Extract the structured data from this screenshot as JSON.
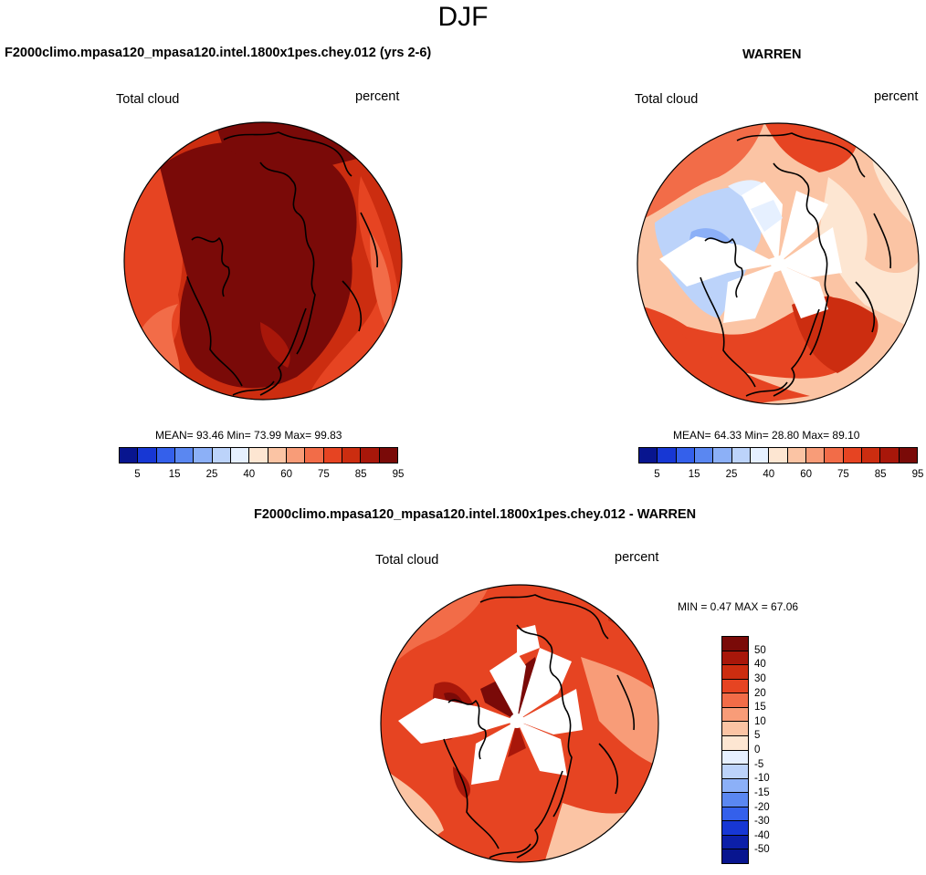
{
  "figure": {
    "season": "DJF",
    "diff_title": "F2000climo.mpasa120_mpasa120.intel.1800x1pes.chey.012 - WARREN"
  },
  "chart_data": [
    {
      "type": "heatmap",
      "projection": "north polar stereographic",
      "title": "F2000climo.mpasa120_mpasa120.intel.1800x1pes.chey.012 (yrs 2-6)",
      "left_label": "Total cloud",
      "right_label": "percent",
      "stats": {
        "mean": "93.46",
        "min": "73.99",
        "max": "99.83"
      },
      "stats_text": "MEAN=  93.46  Min=  73.99  Max=  99.83",
      "colorbar": {
        "orientation": "horizontal",
        "tick_labels": [
          "5",
          "15",
          "25",
          "40",
          "60",
          "75",
          "85",
          "95"
        ],
        "colors": [
          "#08158f",
          "#1737d4",
          "#3460eb",
          "#5a87f1",
          "#8cb0f7",
          "#bcd3fa",
          "#e6f0ff",
          "#fde6d2",
          "#fbc4a4",
          "#f89c78",
          "#f26c48",
          "#e64422",
          "#cc2d10",
          "#a8170a",
          "#7a0a08"
        ]
      },
      "field": {
        "min": 73.99,
        "max": 99.83,
        "mean": 93.46
      }
    },
    {
      "type": "heatmap",
      "projection": "north polar stereographic",
      "title": "WARREN",
      "left_label": "Total cloud",
      "right_label": "percent",
      "stats": {
        "mean": "64.33",
        "min": "28.80",
        "max": "89.10"
      },
      "stats_text": "MEAN=  64.33  Min=  28.80  Max=  89.10",
      "colorbar": {
        "orientation": "horizontal",
        "tick_labels": [
          "5",
          "15",
          "25",
          "40",
          "60",
          "75",
          "85",
          "95"
        ],
        "colors": [
          "#08158f",
          "#1737d4",
          "#3460eb",
          "#5a87f1",
          "#8cb0f7",
          "#bcd3fa",
          "#e6f0ff",
          "#fde6d2",
          "#fbc4a4",
          "#f89c78",
          "#f26c48",
          "#e64422",
          "#cc2d10",
          "#a8170a",
          "#7a0a08"
        ]
      },
      "field": {
        "min": 28.8,
        "max": 89.1,
        "mean": 64.33
      }
    },
    {
      "type": "heatmap",
      "projection": "north polar stereographic",
      "title": "F2000climo.mpasa120_mpasa120.intel.1800x1pes.chey.012 - WARREN",
      "left_label": "Total cloud",
      "right_label": "percent",
      "stats": {
        "min": "0.47",
        "max": "67.06"
      },
      "stats_text": "MIN =   0.47 MAX =  67.06",
      "colorbar": {
        "orientation": "vertical",
        "tick_labels": [
          "50",
          "40",
          "30",
          "20",
          "15",
          "10",
          "5",
          "0",
          "-5",
          "-10",
          "-15",
          "-20",
          "-30",
          "-40",
          "-50"
        ],
        "colors": [
          "#7a0a08",
          "#a8170a",
          "#cc2d10",
          "#e64422",
          "#f26c48",
          "#f89c78",
          "#fbc4a4",
          "#fde6d2",
          "#e6f0ff",
          "#bcd3fa",
          "#8cb0f7",
          "#5a87f1",
          "#3460eb",
          "#1737d4",
          "#0c1fa8",
          "#08158f"
        ]
      },
      "field": {
        "min": 0.47,
        "max": 67.06
      }
    }
  ]
}
